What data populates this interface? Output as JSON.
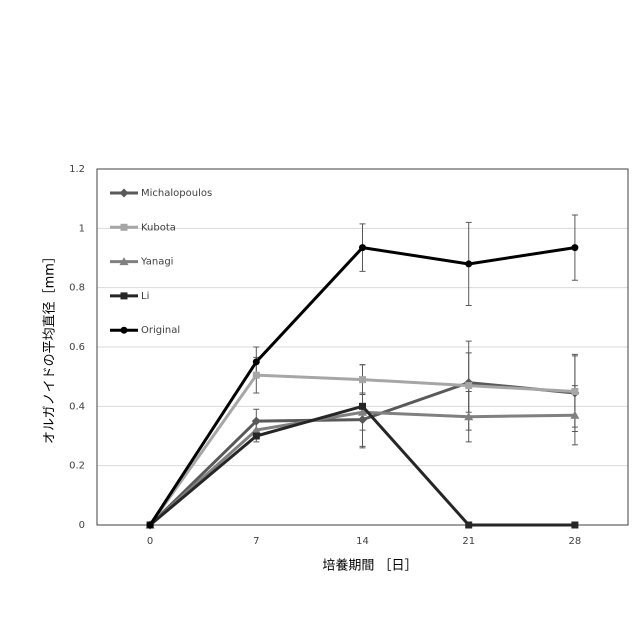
{
  "chart_data": {
    "type": "line",
    "xlabel": "培養期間 ［日］",
    "ylabel": "オルガノイドの平均直径［mm］",
    "categories": [
      "0",
      "7",
      "14",
      "21",
      "28"
    ],
    "ylim": [
      0,
      1.2
    ],
    "yticks": [
      0,
      0.2,
      0.4,
      0.6,
      0.8,
      1,
      1.2
    ],
    "grid": true,
    "legend": "upper left",
    "series": [
      {
        "name": "Michalopoulos",
        "color": "#595959",
        "marker": "diamond",
        "values": [
          0,
          0.35,
          0.355,
          0.48,
          0.445
        ],
        "errors": [
          0,
          0.04,
          0.09,
          0.1,
          0.13
        ]
      },
      {
        "name": "Kubota",
        "color": "#a6a6a6",
        "marker": "square",
        "values": [
          0,
          0.505,
          0.49,
          0.47,
          0.45
        ],
        "errors": [
          0,
          0.06,
          0.05,
          0.15,
          0.12
        ]
      },
      {
        "name": "Yanagi",
        "color": "#808080",
        "marker": "triangle",
        "values": [
          0,
          0.32,
          0.38,
          0.365,
          0.37
        ],
        "errors": [
          0,
          0.03,
          0.06,
          0.085,
          0.1
        ]
      },
      {
        "name": "Li",
        "color": "#262626",
        "marker": "square",
        "values": [
          0,
          0.3,
          0.4,
          0,
          0
        ],
        "errors": [
          0,
          0.02,
          0.14,
          0,
          0
        ]
      },
      {
        "name": "Original",
        "color": "#000000",
        "marker": "circle",
        "values": [
          0,
          0.55,
          0.935,
          0.88,
          0.935
        ],
        "errors": [
          0,
          0.05,
          0.08,
          0.14,
          0.11
        ]
      }
    ]
  }
}
